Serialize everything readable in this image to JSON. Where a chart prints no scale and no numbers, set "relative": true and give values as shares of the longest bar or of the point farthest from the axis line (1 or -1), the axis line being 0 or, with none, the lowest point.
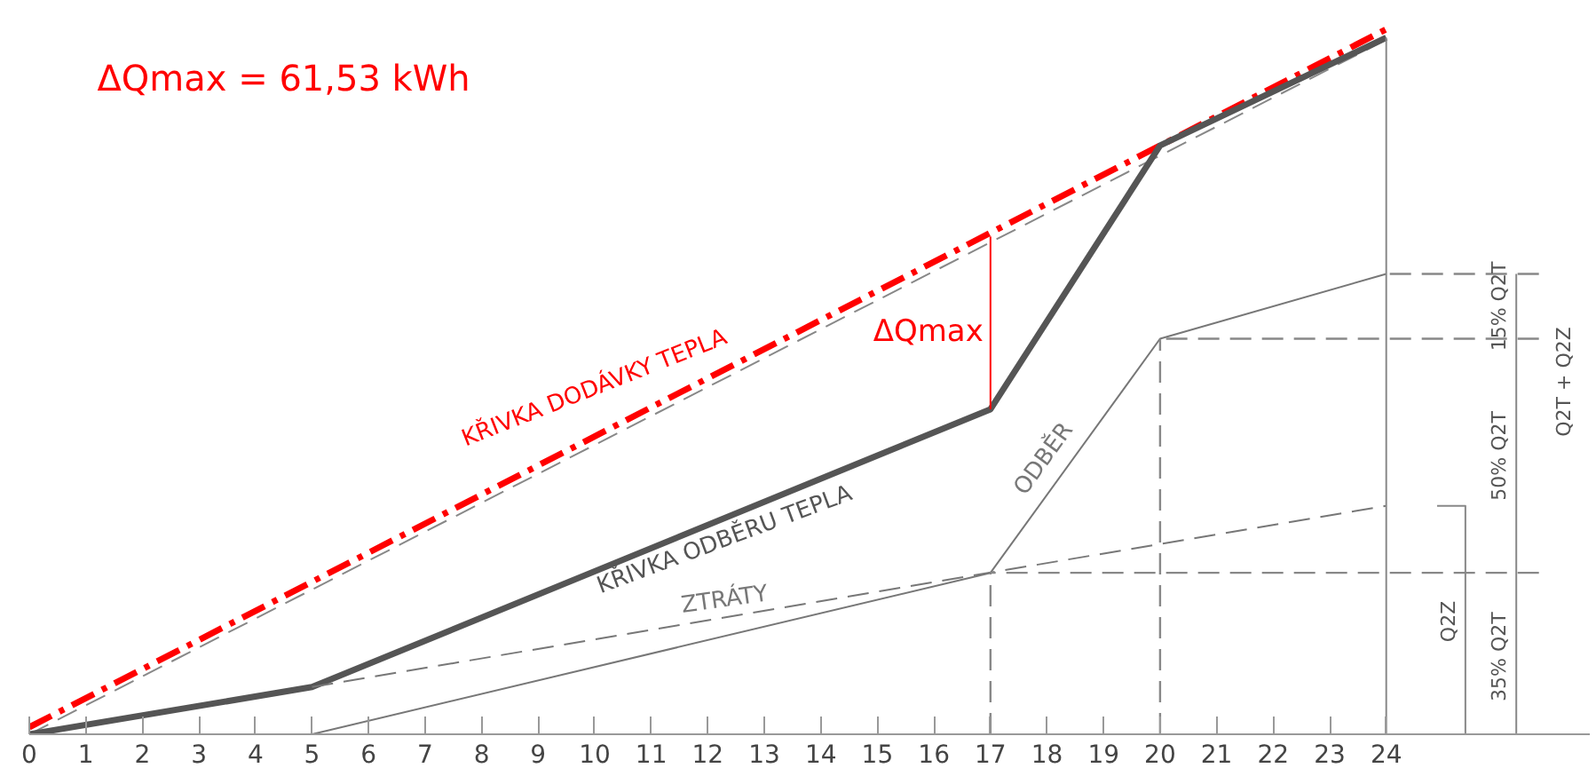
{
  "chart_data": {
    "type": "line",
    "title": "ΔQmax = 61,53 kWh",
    "relative": true,
    "xlim": [
      0,
      27.6
    ],
    "xticks": [
      0,
      1,
      2,
      3,
      4,
      5,
      6,
      7,
      8,
      9,
      10,
      11,
      12,
      13,
      14,
      15,
      16,
      17,
      18,
      19,
      20,
      21,
      22,
      23,
      24
    ],
    "grid": false,
    "marker": "none",
    "series": [
      {
        "name": "KŘIVKA DODÁVKY TEPLA",
        "color": "#ff0000",
        "line_style": "dashdot",
        "x": [
          0,
          24
        ],
        "values": [
          0.01,
          1.0
        ]
      },
      {
        "color": "#888888",
        "line_style": "dashed",
        "x": [
          0,
          24
        ],
        "values": [
          0,
          0.985
        ]
      },
      {
        "name": "KŘIVKA ODBĚRU TEPLA",
        "color": "#555555",
        "line_style": "solid",
        "x": [
          0,
          5,
          17,
          20,
          24
        ],
        "values": [
          0,
          0.067,
          0.461,
          0.835,
          0.988
        ]
      },
      {
        "name": "ZTRÁTY",
        "color": "#777777",
        "line_style": "dashed",
        "x": [
          5,
          24
        ],
        "values": [
          0.067,
          0.324
        ]
      },
      {
        "name": "ODBĚR",
        "color": "#777777",
        "line_style": "solid",
        "x": [
          5,
          17,
          20,
          24
        ],
        "values": [
          0,
          0.229,
          0.561,
          0.653
        ]
      },
      {
        "color": "#ff0000",
        "line_style": "solid",
        "x": [
          17,
          17
        ],
        "values": [
          0.461,
          0.706
        ]
      },
      {
        "color": "#888888",
        "line_style": "dashed",
        "x": [
          17,
          17
        ],
        "values": [
          0,
          0.229
        ]
      },
      {
        "color": "#888888",
        "line_style": "dashed",
        "x": [
          20,
          20
        ],
        "values": [
          0,
          0.561
        ]
      },
      {
        "color": "#888888",
        "line_style": "solid",
        "x": [
          24,
          24
        ],
        "values": [
          0,
          0.988
        ]
      },
      {
        "color": "#888888",
        "line_style": "dashed",
        "x": [
          26.7,
          24
        ],
        "values": [
          0.653,
          0.653
        ]
      },
      {
        "color": "#888888",
        "line_style": "dashed",
        "x": [
          26.7,
          20
        ],
        "values": [
          0.561,
          0.561
        ]
      },
      {
        "color": "#888888",
        "line_style": "dashed",
        "x": [
          26.7,
          17
        ],
        "values": [
          0.229,
          0.229
        ]
      },
      {
        "color": "#888888",
        "line_style": "solid",
        "x": [
          26.3,
          26.3
        ],
        "values": [
          0,
          0.653
        ]
      },
      {
        "color": "#888888",
        "line_style": "solid",
        "x": [
          24.9,
          25.4,
          25.4
        ],
        "values": [
          0.324,
          0.324,
          0
        ]
      }
    ],
    "annotations": [
      "ΔQmax",
      "15% Q2T",
      "50% Q2T",
      "35% Q2T",
      "Q2Z",
      "Q2T + Q2Z"
    ]
  }
}
